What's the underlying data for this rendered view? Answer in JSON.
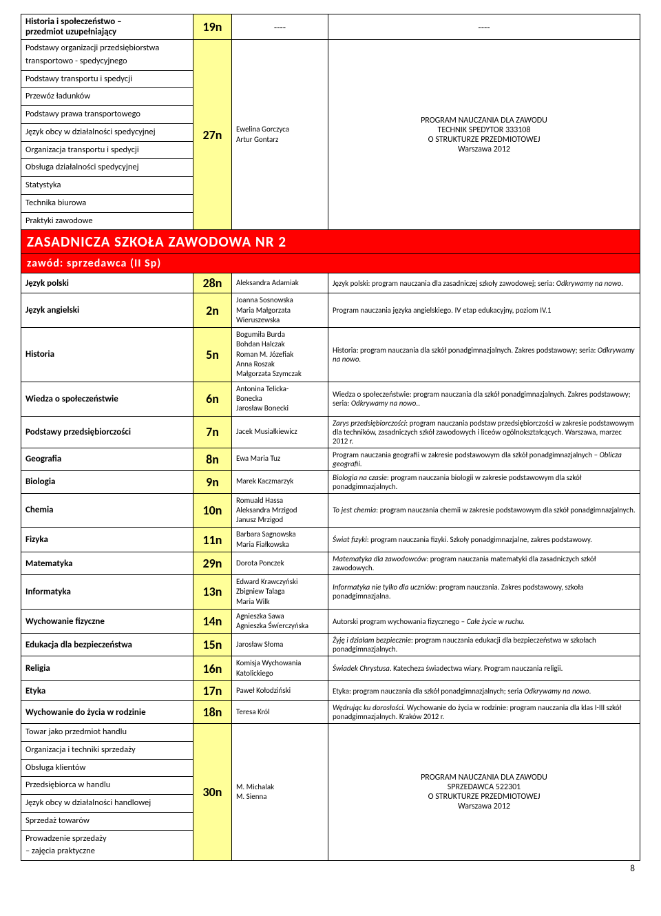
{
  "block1": {
    "row1": {
      "subject": "Historia i społeczeństwo –\nprzedmiot uzupełniający",
      "code": "19n",
      "author": "----",
      "program": "----"
    },
    "group": {
      "subjects": [
        "Podstawy organizacji przedsiębiorstwa transportowo - spedycyjnego",
        "Podstawy transportu i spedycji",
        "Przewóz ładunków",
        "Podstawy prawa transportowego",
        "Język obcy w działalności spedycyjnej",
        "Organizacja transportu i spedycji",
        "Obsługa działalności spedycyjnej",
        "Statystyka",
        "Technika biurowa",
        "Praktyki zawodowe"
      ],
      "code": "27n",
      "authors": "Ewelina Gorczyca\nArtur Gontarz",
      "program": "PROGRAM NAUCZANIA DLA ZAWODU\nTECHNIK SPEDYTOR 333108\nO STRUKTURZE PRZEDMIOTOWEJ\nWarszawa 2012"
    }
  },
  "school_hdr": "ZASADNICZA SZKOŁA ZAWODOWA NR 2",
  "occup_hdr": "zawód: sprzedawca (II Sp)",
  "rows": [
    {
      "subject": "Język polski",
      "code": "28n",
      "author": "Aleksandra Adamiak",
      "program": "Język polski: program nauczania dla zasadniczej szkoły zawodowej; seria: <i>Odkrywamy na nowo.</i>"
    },
    {
      "subject": "Język angielski",
      "code": "2n",
      "author": "Joanna Sosnowska\nMaria Małgorzata\nWieruszewska",
      "program": "Program nauczania języka angielskiego. IV etap edukacyjny, poziom IV.1"
    },
    {
      "subject": "Historia",
      "code": "5n",
      "author": "Bogumiła Burda\nBohdan Halczak\nRoman M. Józefiak\nAnna Roszak\nMałgorzata Szymczak",
      "program": "Historia: program nauczania dla szkół ponadgimnazjalnych. Zakres podstawowy; seria: <i>Odkrywamy na nowo.</i>"
    },
    {
      "subject": "Wiedza o społeczeństwie",
      "code": "6n",
      "author": "Antonina Telicka-\nBonecka\nJarosław Bonecki",
      "program": "Wiedza o społeczeństwie: program nauczania dla szkół ponadgimnazjalnych. Zakres podstawowy;<br>seria: <i>Odkrywamy na nowo.</i>."
    },
    {
      "subject": "Podstawy przedsiębiorczości",
      "code": "7n",
      "author": "Jacek Musiałkiewicz",
      "program": "<i>Zarys przedsiębiorczości</i>: program nauczania podstaw przedsiębiorczości w zakresie podstawowym dla techników, zasadniczych szkół zawodowych i liceów ogólnokształcących. Warszawa, marzec 2012 r."
    },
    {
      "subject": "Geografia",
      "code": "8n",
      "author": "Ewa Maria Tuz",
      "program": "Program nauczania geografii w zakresie podstawowym dla szkół ponadgimnazjalnych – <i>Oblicza geografii.</i>"
    },
    {
      "subject": "Biologia",
      "code": "9n",
      "author": "Marek Kaczmarzyk",
      "program": "<i>Biologia na czasie</i>: program nauczania biologii w zakresie podstawowym dla szkół ponadgimnazjalnych."
    },
    {
      "subject": "Chemia",
      "code": "10n",
      "author": "Romuald Hassa\nAleksandra Mrzigod\nJanusz Mrzigod",
      "program": "<i>To jest chemia</i>: program nauczania chemii w zakresie podstawowym dla szkół ponadgimnazjalnych."
    },
    {
      "subject": "Fizyka",
      "code": "11n",
      "author": "Barbara Sagnowska\nMaria Fiałkowska",
      "program": "<i>Świat fizyki</i>: program nauczania fizyki. Szkoły ponadgimnazjalne, zakres podstawowy."
    },
    {
      "subject": "Matematyka",
      "code": "29n",
      "author": "Dorota Ponczek",
      "program": "<i>Matematyka dla zawodowców</i>: program nauczania matematyki dla zasadniczych szkół zawodowych."
    },
    {
      "subject": "Informatyka",
      "code": "13n",
      "author": "Edward Krawczyński\nZbigniew Talaga\nMaria Wilk",
      "program": "<i>Informatyka nie tylko dla uczniów</i>: program nauczania. Zakres podstawowy, szkoła ponadgimnazjalna."
    },
    {
      "subject": "Wychowanie fizyczne",
      "code": "14n",
      "author": "Agnieszka Sawa\nAgnieszka Śwíerczyńska",
      "program": "Autorski program wychowania fizycznego – <i>Całe życie w ruchu.</i>"
    },
    {
      "subject": "Edukacja dla bezpieczeństwa",
      "code": "15n",
      "author": "Jarosław Słoma",
      "program": "<i>Żyję i działam bezpiecznie</i>: program nauczania edukacji dla bezpieczeństwa w szkołach ponadgimnazjalnych."
    },
    {
      "subject": "Religia",
      "code": "16n",
      "author": "Komisja Wychowania\nKatolickiego",
      "program": "<i>Świadek Chrystusa</i>. Katecheza świadectwa wiary. Program nauczania religii."
    },
    {
      "subject": "Etyka",
      "code": "17n",
      "author": "Paweł Kołodziński",
      "program": "Etyka: program nauczania dla szkół ponadgimnazjalnych; seria <i>Odkrywamy na nowo.</i>"
    },
    {
      "subject": "Wychowanie do życia w rodzinie",
      "code": "18n",
      "author": "Teresa Król",
      "program": "<i>Wędrując ku dorosłości.</i> Wychowanie do życia w rodzinie: program nauczania dla klas I-III szkół ponadgimnazjalnych. Kraków 2012 r."
    }
  ],
  "group2": {
    "subjects": [
      "Towar jako przedmiot handlu",
      "Organizacja i techniki sprzedaży",
      "Obsługa klientów",
      "Przedsiębiorca w handlu",
      "Język obcy w działalności handlowej",
      "Sprzedaż towarów",
      "Prowadzenie sprzedaży\n– zajęcia praktyczne"
    ],
    "code": "30n",
    "authors": "M. Michalak\nM. Sienna",
    "program": "PROGRAM NAUCZANIA DLA ZAWODU\nSPRZEDAWCA 522301\nO STRUKTURZE PRZEDMIOTOWEJ\nWarszawa 2012"
  },
  "pagenum": "8"
}
